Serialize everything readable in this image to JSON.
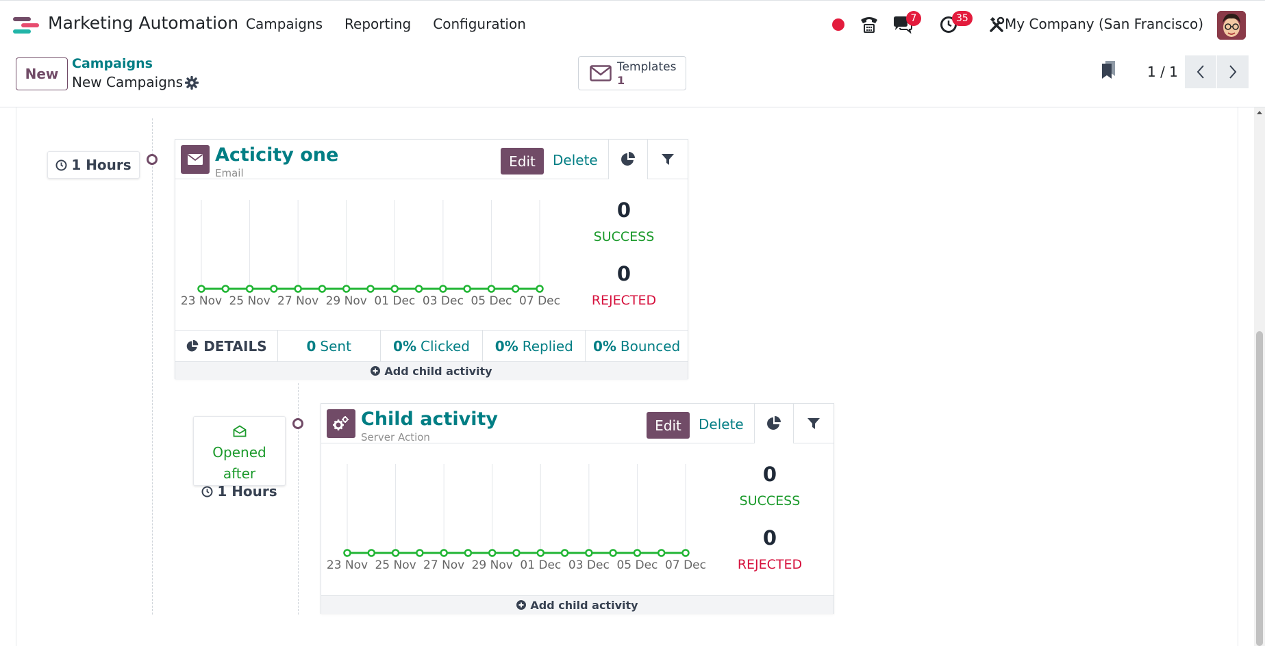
{
  "app": {
    "title": "Marketing Automation",
    "menu": [
      "Campaigns",
      "Reporting",
      "Configuration"
    ],
    "messages_badge": "7",
    "activities_badge": "35",
    "company": "My Company (San Francisco)"
  },
  "control": {
    "new_label": "New",
    "breadcrumb_parent": "Campaigns",
    "breadcrumb_current": "New Campaigns",
    "templates_label": "Templates",
    "templates_count": "1",
    "pager": "1 / 1"
  },
  "activities": [
    {
      "trigger_time": "1 Hours",
      "name": "Acticity one",
      "type": "Email",
      "edit_label": "Edit",
      "delete_label": "Delete",
      "success_count": "0",
      "success_label": "SUCCESS",
      "rejected_count": "0",
      "rejected_label": "REJECTED",
      "details_label": "DETAILS",
      "kpis": [
        {
          "value": "0",
          "label": "Sent"
        },
        {
          "value": "0%",
          "label": "Clicked"
        },
        {
          "value": "0%",
          "label": "Replied"
        },
        {
          "value": "0%",
          "label": "Bounced"
        }
      ],
      "add_child_label": "Add child activity"
    },
    {
      "trigger_event": "Opened after",
      "trigger_time": "1 Hours",
      "name": "Child activity",
      "type": "Server Action",
      "edit_label": "Edit",
      "delete_label": "Delete",
      "success_count": "0",
      "success_label": "SUCCESS",
      "rejected_count": "0",
      "rejected_label": "REJECTED",
      "add_child_label": "Add child activity"
    }
  ],
  "chart_data": [
    {
      "type": "line",
      "x": [
        "23 Nov",
        "24 Nov",
        "25 Nov",
        "26 Nov",
        "27 Nov",
        "28 Nov",
        "29 Nov",
        "30 Nov",
        "01 Dec",
        "02 Dec",
        "03 Dec",
        "04 Dec",
        "05 Dec",
        "06 Dec",
        "07 Dec"
      ],
      "tick_labels": [
        "23 Nov",
        "25 Nov",
        "27 Nov",
        "29 Nov",
        "01 Dec",
        "03 Dec",
        "05 Dec",
        "07 Dec"
      ],
      "series": [
        {
          "values": [
            0,
            0,
            0,
            0,
            0,
            0,
            0,
            0,
            0,
            0,
            0,
            0,
            0,
            0,
            0
          ],
          "color": "#21b534"
        }
      ],
      "grid": "vertical"
    },
    {
      "type": "line",
      "x": [
        "23 Nov",
        "24 Nov",
        "25 Nov",
        "26 Nov",
        "27 Nov",
        "28 Nov",
        "29 Nov",
        "30 Nov",
        "01 Dec",
        "02 Dec",
        "03 Dec",
        "04 Dec",
        "05 Dec",
        "06 Dec",
        "07 Dec"
      ],
      "tick_labels": [
        "23 Nov",
        "25 Nov",
        "27 Nov",
        "29 Nov",
        "01 Dec",
        "03 Dec",
        "05 Dec",
        "07 Dec"
      ],
      "series": [
        {
          "values": [
            0,
            0,
            0,
            0,
            0,
            0,
            0,
            0,
            0,
            0,
            0,
            0,
            0,
            0,
            0
          ],
          "color": "#21b534"
        }
      ],
      "grid": "vertical"
    }
  ],
  "colors": {
    "brand": "#714b67",
    "teal": "#017e84",
    "success": "#1b9a2b",
    "rejected": "#d6113d",
    "line": "#21b534"
  }
}
